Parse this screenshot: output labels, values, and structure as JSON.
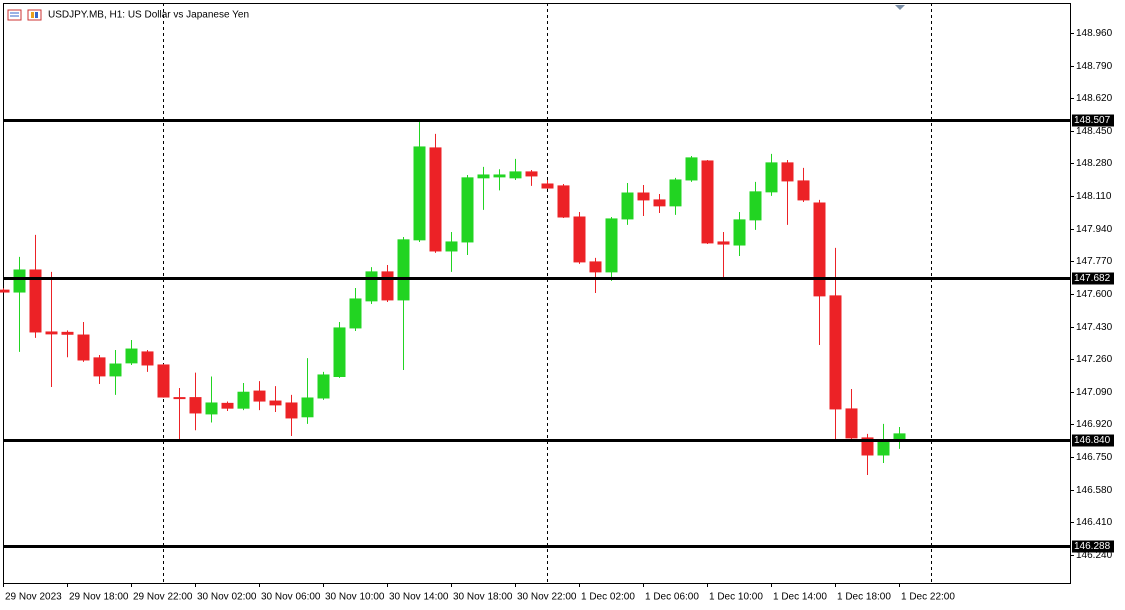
{
  "chart_data": {
    "type": "candlestick",
    "title": "USDJPY.MB, H1:  US Dollar vs Japanese Yen",
    "categories": [
      "29 Nov 2023",
      null,
      null,
      null,
      "29 Nov 18:00",
      null,
      null,
      null,
      "29 Nov 22:00",
      null,
      null,
      null,
      "30 Nov 02:00",
      null,
      null,
      null,
      "30 Nov 06:00",
      null,
      null,
      null,
      "30 Nov 10:00",
      null,
      null,
      null,
      "30 Nov 14:00",
      null,
      null,
      null,
      "30 Nov 18:00",
      null,
      null,
      null,
      "30 Nov 22:00",
      null,
      null,
      null,
      "1 Dec 02:00",
      null,
      null,
      null,
      "1 Dec 06:00",
      null,
      null,
      null,
      "1 Dec 10:00",
      null,
      null,
      null,
      "1 Dec 14:00",
      null,
      null,
      null,
      "1 Dec 18:00",
      null,
      null,
      null,
      "1 Dec 22:00"
    ],
    "open": [
      147.62,
      147.61,
      147.725,
      147.402,
      147.4,
      147.386,
      147.267,
      147.173,
      147.241,
      147.298,
      147.23,
      147.06,
      147.06,
      146.975,
      147.03,
      147.005,
      147.094,
      147.042,
      147.032,
      146.96,
      147.058,
      147.17,
      147.423,
      147.564,
      147.715,
      147.569,
      147.882,
      148.361,
      147.824,
      147.871,
      148.205,
      148.21,
      148.205,
      148.236,
      148.173,
      148.163,
      148.001,
      147.767,
      147.715,
      147.991,
      148.126,
      148.09,
      148.059,
      148.194,
      148.293,
      147.871,
      147.855,
      147.986,
      148.132,
      148.283,
      148.189,
      148.074,
      147.59,
      147.001,
      146.85,
      146.761,
      146.84
    ],
    "high": [
      147.63,
      147.793,
      147.908,
      147.715,
      147.41,
      147.454,
      147.282,
      147.308,
      147.36,
      147.308,
      147.235,
      147.11,
      147.19,
      147.17,
      147.04,
      147.136,
      147.146,
      147.12,
      147.074,
      147.266,
      147.194,
      147.454,
      147.631,
      147.74,
      147.751,
      147.897,
      148.507,
      148.434,
      147.923,
      148.22,
      148.262,
      148.25,
      148.304,
      148.246,
      148.194,
      148.173,
      148.027,
      147.788,
      148.001,
      148.178,
      148.168,
      148.121,
      148.205,
      148.319,
      148.298,
      147.923,
      148.027,
      148.184,
      148.33,
      148.298,
      148.257,
      148.09,
      147.84,
      147.105,
      146.871,
      146.923,
      146.907
    ],
    "low": [
      147.61,
      147.298,
      147.371,
      147.115,
      147.27,
      147.246,
      147.131,
      147.074,
      147.23,
      147.194,
      147.06,
      146.84,
      146.89,
      146.93,
      146.99,
      146.995,
      146.995,
      146.985,
      146.86,
      146.923,
      147.048,
      147.163,
      147.407,
      147.548,
      147.558,
      147.204,
      147.871,
      147.814,
      147.715,
      147.803,
      148.038,
      148.14,
      148.194,
      148.163,
      148.147,
      147.996,
      147.757,
      147.605,
      147.668,
      147.96,
      148.006,
      148.022,
      148.012,
      148.184,
      147.86,
      147.684,
      147.798,
      147.934,
      148.111,
      147.96,
      148.079,
      147.334,
      146.84,
      146.834,
      146.657,
      146.719,
      146.793
    ],
    "close": [
      147.61,
      147.725,
      147.402,
      147.392,
      147.39,
      147.256,
      147.173,
      147.235,
      147.313,
      147.23,
      147.063,
      147.055,
      146.98,
      147.032,
      147.005,
      147.088,
      147.042,
      147.022,
      146.954,
      147.058,
      147.178,
      147.423,
      147.574,
      147.715,
      147.569,
      147.882,
      148.366,
      147.824,
      147.871,
      148.205,
      148.22,
      148.22,
      148.236,
      148.215,
      148.152,
      148.001,
      147.767,
      147.715,
      147.991,
      148.126,
      148.09,
      148.059,
      148.194,
      148.309,
      147.866,
      147.86,
      147.986,
      148.132,
      148.283,
      148.189,
      148.09,
      147.59,
      147.001,
      146.85,
      146.761,
      146.84,
      146.871
    ],
    "up_color": "#22d422",
    "down_color": "#ec2226",
    "ylim": [
      146.094,
      149.116
    ],
    "yticks": [
      {
        "value": 148.96,
        "label": "148.960"
      },
      {
        "value": 148.79,
        "label": "148.790"
      },
      {
        "value": 148.62,
        "label": "148.620"
      },
      {
        "value": 148.45,
        "label": "148.450"
      },
      {
        "value": 148.28,
        "label": "148.280"
      },
      {
        "value": 148.11,
        "label": "148.110"
      },
      {
        "value": 147.94,
        "label": "147.940"
      },
      {
        "value": 147.77,
        "label": "147.770"
      },
      {
        "value": 147.6,
        "label": "147.600"
      },
      {
        "value": 147.43,
        "label": "147.430"
      },
      {
        "value": 147.26,
        "label": "147.260"
      },
      {
        "value": 147.09,
        "label": "147.090"
      },
      {
        "value": 146.92,
        "label": "146.920"
      },
      {
        "value": 146.75,
        "label": "146.750"
      },
      {
        "value": 146.58,
        "label": "146.580"
      },
      {
        "value": 146.41,
        "label": "146.410"
      },
      {
        "value": 146.24,
        "label": "146.240"
      }
    ],
    "levels": [
      148.507,
      147.682,
      {
        "value": 146.84,
        "label": "146.840"
      },
      146.288
    ],
    "level_color": "#000000"
  }
}
